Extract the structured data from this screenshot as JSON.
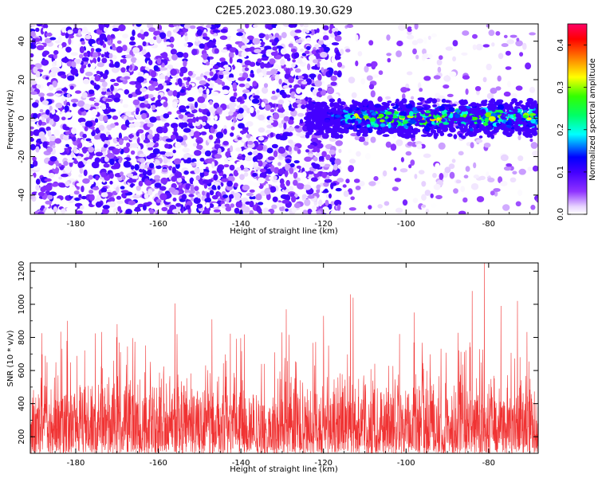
{
  "figure": {
    "title": "C2E5.2023.080.19.30.G29"
  },
  "chart_data": [
    {
      "type": "heatmap",
      "title": "C2E5.2023.080.19.30.G29",
      "xlabel": "Height of straight line (km)",
      "ylabel": "Frequency (Hz)",
      "xlim": [
        -191,
        -68
      ],
      "ylim": [
        -50,
        49
      ],
      "x_ticks": [
        -180,
        -160,
        -140,
        -120,
        -100,
        -80
      ],
      "y_ticks": [
        -40,
        -20,
        0,
        20,
        40
      ],
      "colorbar": {
        "label": "Normalized spectral amplitude",
        "range": [
          0,
          0.45
        ],
        "ticks": [
          0.0,
          0.1,
          0.2,
          0.3,
          0.4
        ],
        "colormap": [
          "#ffffff",
          "#cc99ff",
          "#6600ff",
          "#0000ff",
          "#00ffff",
          "#00ff00",
          "#ffff00",
          "#ff0000",
          "#ff0066"
        ]
      },
      "description_values": {
        "background_amplitude_range": [
          0.0,
          0.12
        ],
        "signal_band_x_start": -124,
        "signal_band_center_hz": 0,
        "signal_band_halfwidth_hz": 10,
        "signal_peak_amplitude": 0.38
      },
      "grid": false
    },
    {
      "type": "line",
      "xlabel": "Height of straight line (km)",
      "ylabel": "SNR (10 * v/v)",
      "xlim": [
        -191,
        -68
      ],
      "ylim": [
        100,
        1250
      ],
      "x_ticks": [
        -180,
        -160,
        -140,
        -120,
        -100,
        -80
      ],
      "y_ticks": [
        200,
        400,
        600,
        800,
        1000,
        1200
      ],
      "series": [
        {
          "color": "#f03232",
          "baseline_range": [
            100,
            600
          ],
          "peaks": [
            {
              "x": -113.5,
              "y": 1060
            },
            {
              "x": -112.8,
              "y": 1040
            },
            {
              "x": -81,
              "y": 1250
            },
            {
              "x": -84,
              "y": 1080
            },
            {
              "x": -156,
              "y": 1005
            },
            {
              "x": -73,
              "y": 1020
            },
            {
              "x": -77,
              "y": 990
            },
            {
              "x": -129,
              "y": 970
            },
            {
              "x": -98,
              "y": 950
            },
            {
              "x": -120,
              "y": 930
            },
            {
              "x": -147,
              "y": 910
            },
            {
              "x": -182,
              "y": 900
            },
            {
              "x": -170,
              "y": 880
            }
          ]
        }
      ],
      "grid": false
    }
  ]
}
